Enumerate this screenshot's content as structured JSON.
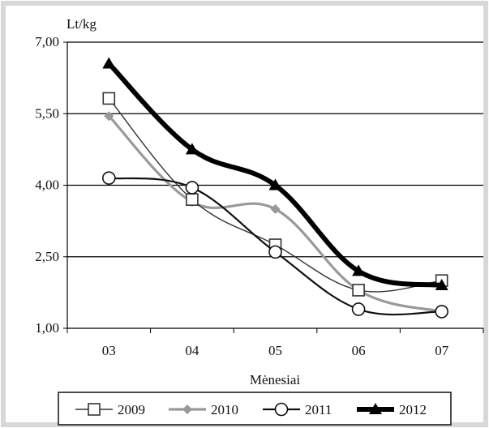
{
  "chart_data": {
    "type": "line",
    "title": "",
    "ylabel": "Lt/kg",
    "xlabel": "Mėnesiai",
    "categories": [
      "03",
      "04",
      "05",
      "06",
      "07"
    ],
    "yticks": [
      "1,00",
      "2,50",
      "4,00",
      "5,50",
      "7,00"
    ],
    "ylim": [
      1.0,
      7.0
    ],
    "grid": "horizontal",
    "legend_position": "bottom",
    "series": [
      {
        "name": "2009",
        "values": [
          5.82,
          3.7,
          2.75,
          1.8,
          2.0
        ],
        "color": "#333333",
        "marker": "square-open"
      },
      {
        "name": "2010",
        "values": [
          5.45,
          3.65,
          3.5,
          1.8,
          1.35
        ],
        "color": "#999999",
        "marker": "diamond-filled"
      },
      {
        "name": "2011",
        "values": [
          4.15,
          3.95,
          2.6,
          1.4,
          1.35
        ],
        "color": "#111111",
        "marker": "circle-open"
      },
      {
        "name": "2012",
        "values": [
          6.55,
          4.75,
          4.0,
          2.2,
          1.9
        ],
        "color": "#000000",
        "marker": "triangle-filled"
      }
    ]
  }
}
